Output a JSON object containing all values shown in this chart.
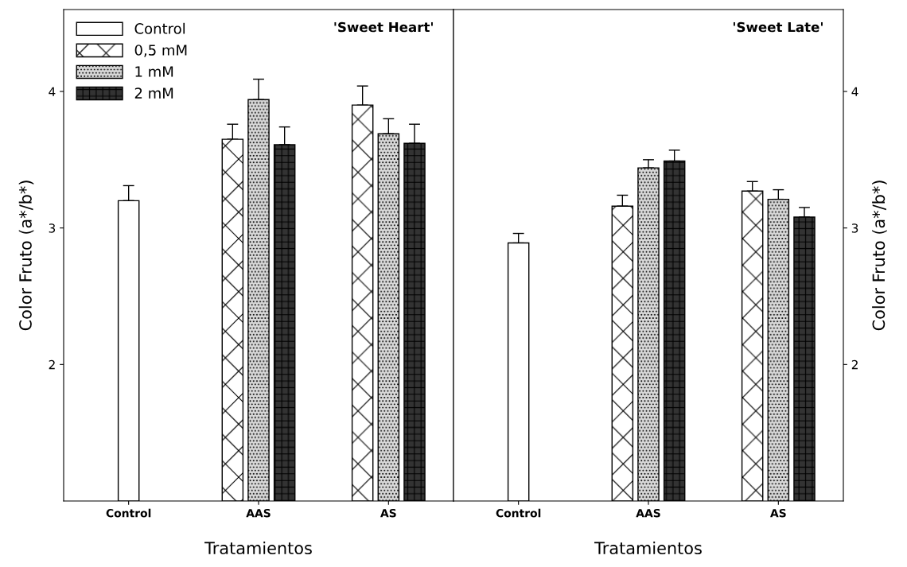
{
  "chart_data": [
    {
      "type": "bar",
      "title": "'Sweet Heart'",
      "xlabel": "Tratamientos",
      "ylabel": "Color Fruto (a*/b*)",
      "categories": [
        "Control",
        "AAS",
        "AS"
      ],
      "ylim": [
        1,
        4.6
      ],
      "yticks": [
        2,
        3,
        4
      ],
      "legend": "top left",
      "grid": false,
      "series": [
        {
          "name": "Control",
          "color": "#ffffff",
          "values": [
            3.2,
            null,
            null
          ],
          "errors": [
            0.11,
            null,
            null
          ]
        },
        {
          "name": "0,5 mM",
          "color": "#ffffff",
          "values": [
            null,
            3.65,
            3.9
          ],
          "errors": [
            null,
            0.11,
            0.14
          ]
        },
        {
          "name": "1 mM",
          "color": "#d9d9d9",
          "values": [
            null,
            3.94,
            3.69
          ],
          "errors": [
            null,
            0.15,
            0.11
          ]
        },
        {
          "name": "2 mM",
          "color": "#333333",
          "values": [
            null,
            3.61,
            3.62
          ],
          "errors": [
            null,
            0.13,
            0.14
          ]
        }
      ]
    },
    {
      "type": "bar",
      "title": "'Sweet Late'",
      "xlabel": "Tratamientos",
      "ylabel": "Color Fruto (a*/b*)",
      "categories": [
        "Control",
        "AAS",
        "AS"
      ],
      "ylim": [
        1,
        4.6
      ],
      "yticks": [
        2,
        3,
        4
      ],
      "legend": false,
      "grid": false,
      "series": [
        {
          "color": "#ffffff",
          "values": [
            2.89,
            null,
            null
          ],
          "errors": [
            0.07,
            null,
            null
          ]
        },
        {
          "color": "#ffffff",
          "values": [
            null,
            3.16,
            3.27
          ],
          "errors": [
            null,
            0.08,
            0.07
          ]
        },
        {
          "color": "#d9d9d9",
          "values": [
            null,
            3.44,
            3.21
          ],
          "errors": [
            null,
            0.06,
            0.07
          ]
        },
        {
          "color": "#333333",
          "values": [
            null,
            3.49,
            3.08
          ],
          "errors": [
            null,
            0.08,
            0.07
          ]
        }
      ]
    }
  ]
}
